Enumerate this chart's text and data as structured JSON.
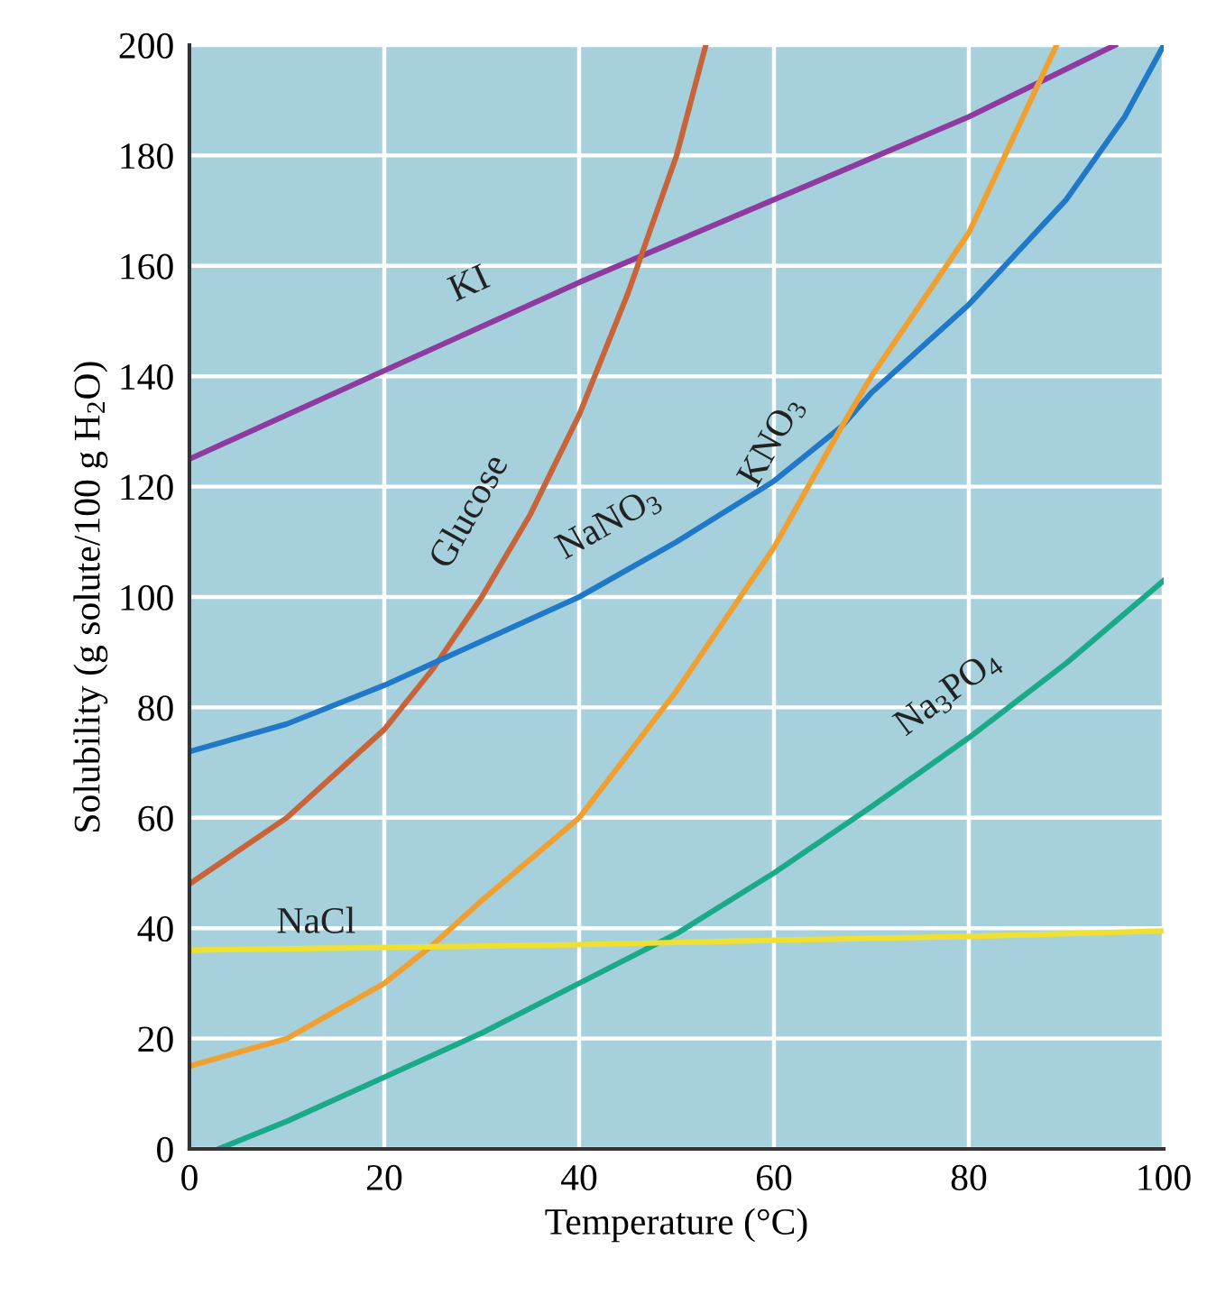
{
  "chart_data": {
    "type": "line",
    "xlabel": "Temperature (°C)",
    "ylabel": "Solubility (g solute/100 g H$_{2}$O)",
    "xlim": [
      0,
      100
    ],
    "ylim": [
      0,
      200
    ],
    "xticks": [
      0,
      20,
      40,
      60,
      80,
      100
    ],
    "yticks": [
      0,
      20,
      40,
      60,
      80,
      100,
      120,
      140,
      160,
      180,
      200
    ],
    "grid": true,
    "legend": false,
    "series": [
      {
        "name": "KI",
        "color": "#8e3a9e",
        "x": [
          0,
          20,
          40,
          60,
          80,
          95
        ],
        "values": [
          125,
          141,
          157,
          172,
          187,
          200
        ]
      },
      {
        "name": "Glucose",
        "color": "#c8643a",
        "x": [
          0,
          10,
          20,
          25,
          30,
          35,
          40,
          45,
          50,
          53
        ],
        "values": [
          48,
          60,
          76,
          87,
          100,
          115,
          133,
          155,
          180,
          200
        ]
      },
      {
        "name": "NaNO$_{3}$",
        "color": "#1f78c8",
        "x": [
          0,
          10,
          20,
          30,
          40,
          50,
          60,
          67,
          70,
          80,
          90,
          96,
          100
        ],
        "values": [
          72,
          77,
          84,
          92,
          100,
          110,
          121,
          131,
          137,
          153,
          172,
          187,
          200
        ]
      },
      {
        "name": "KNO$_{3}$",
        "color": "#f0a030",
        "x": [
          0,
          10,
          20,
          25,
          30,
          40,
          50,
          60,
          67,
          70,
          80,
          89
        ],
        "values": [
          15,
          20,
          30,
          37,
          45,
          60,
          83,
          109,
          131,
          140,
          166,
          200
        ]
      },
      {
        "name": "Na$_{3}$PO$_{4}$",
        "color": "#1aaa8a",
        "x": [
          3,
          10,
          20,
          30,
          40,
          50,
          60,
          70,
          80,
          90,
          100
        ],
        "values": [
          0,
          5,
          13,
          21,
          30,
          39,
          50,
          62,
          74.5,
          88,
          103
        ]
      },
      {
        "name": "NaCl",
        "color": "#f0e030",
        "x": [
          0,
          20,
          40,
          60,
          80,
          100
        ],
        "values": [
          36,
          36.5,
          37,
          37.8,
          38.5,
          39.5
        ]
      }
    ]
  }
}
